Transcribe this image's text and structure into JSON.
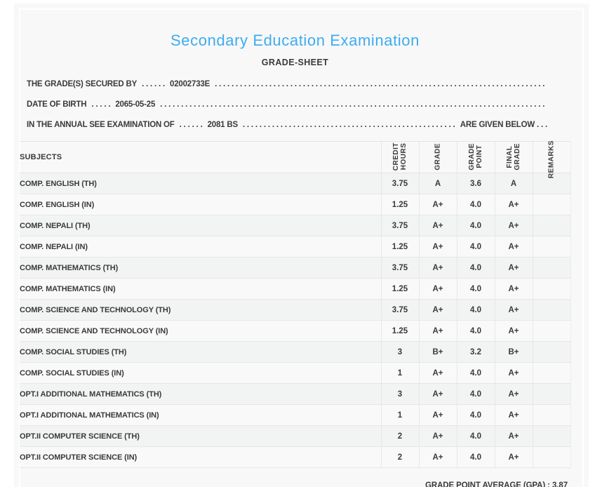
{
  "page": {
    "title": "Secondary Education Examination",
    "subtitle": "GRADE-SHEET",
    "accent_color": "#3dacf0",
    "card_background": "#f8f8f8",
    "text_color": "#3a3a3a"
  },
  "dots_fill": ". . . . . . . . . . . . . . . . . . . . . . . . . . . . . . . . . . . . . . . . . . . . . . . . . . . . . . . . . . . . . . . . . . . . . . . . . . . . . . . . . . . . . . . . . . . .",
  "info_lines": [
    {
      "label": "THE GRADE(S) SECURED BY",
      "pre_dots": ". . . . . .",
      "value": "02002733E",
      "suffix": ""
    },
    {
      "label": "DATE OF BIRTH",
      "pre_dots": ". . . . .",
      "value": "2065-05-25",
      "suffix": ""
    },
    {
      "label": "IN THE ANNUAL SEE EXAMINATION OF",
      "pre_dots": ". . . . . .",
      "value": "2081 BS",
      "suffix": "ARE GIVEN BELOW . . ."
    }
  ],
  "table": {
    "subjects_header": "SUBJECTS",
    "columns": [
      "CREDIT\nHOURS",
      "GRADE",
      "GRADE\nPOINT",
      "FINAL\nGRADE",
      "REMARKS"
    ],
    "rows": [
      {
        "subject": "COMP. ENGLISH (TH)",
        "credit": "3.75",
        "grade": "A",
        "point": "3.6",
        "final": "A",
        "remarks": ""
      },
      {
        "subject": "COMP. ENGLISH (IN)",
        "credit": "1.25",
        "grade": "A+",
        "point": "4.0",
        "final": "A+",
        "remarks": ""
      },
      {
        "subject": "COMP. NEPALI (TH)",
        "credit": "3.75",
        "grade": "A+",
        "point": "4.0",
        "final": "A+",
        "remarks": ""
      },
      {
        "subject": "COMP. NEPALI (IN)",
        "credit": "1.25",
        "grade": "A+",
        "point": "4.0",
        "final": "A+",
        "remarks": ""
      },
      {
        "subject": "COMP. MATHEMATICS (TH)",
        "credit": "3.75",
        "grade": "A+",
        "point": "4.0",
        "final": "A+",
        "remarks": ""
      },
      {
        "subject": "COMP. MATHEMATICS (IN)",
        "credit": "1.25",
        "grade": "A+",
        "point": "4.0",
        "final": "A+",
        "remarks": ""
      },
      {
        "subject": "COMP. SCIENCE AND TECHNOLOGY (TH)",
        "credit": "3.75",
        "grade": "A+",
        "point": "4.0",
        "final": "A+",
        "remarks": ""
      },
      {
        "subject": "COMP. SCIENCE AND TECHNOLOGY (IN)",
        "credit": "1.25",
        "grade": "A+",
        "point": "4.0",
        "final": "A+",
        "remarks": ""
      },
      {
        "subject": "COMP. SOCIAL STUDIES (TH)",
        "credit": "3",
        "grade": "B+",
        "point": "3.2",
        "final": "B+",
        "remarks": ""
      },
      {
        "subject": "COMP. SOCIAL STUDIES (IN)",
        "credit": "1",
        "grade": "A+",
        "point": "4.0",
        "final": "A+",
        "remarks": ""
      },
      {
        "subject": "OPT.I ADDITIONAL MATHEMATICS (TH)",
        "credit": "3",
        "grade": "A+",
        "point": "4.0",
        "final": "A+",
        "remarks": ""
      },
      {
        "subject": "OPT.I ADDITIONAL MATHEMATICS (IN)",
        "credit": "1",
        "grade": "A+",
        "point": "4.0",
        "final": "A+",
        "remarks": ""
      },
      {
        "subject": "OPT.II COMPUTER SCIENCE (TH)",
        "credit": "2",
        "grade": "A+",
        "point": "4.0",
        "final": "A+",
        "remarks": ""
      },
      {
        "subject": "OPT.II COMPUTER SCIENCE (IN)",
        "credit": "2",
        "grade": "A+",
        "point": "4.0",
        "final": "A+",
        "remarks": ""
      }
    ]
  },
  "footer": {
    "gpa_label": "GRADE POINT AVERAGE (GPA) : 3.87"
  }
}
